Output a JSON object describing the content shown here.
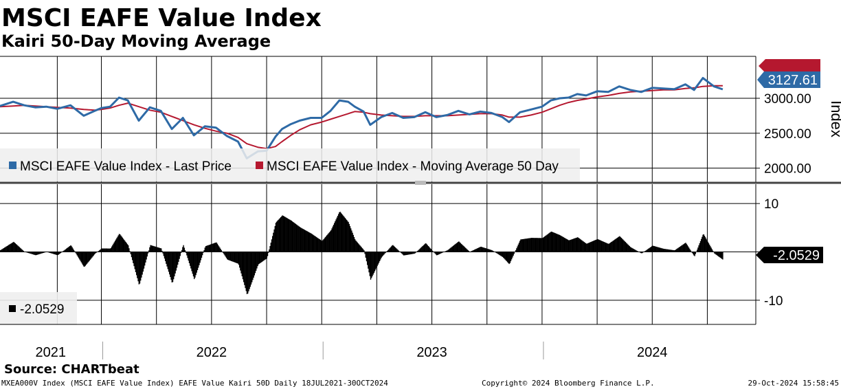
{
  "header": {
    "title": "MSCI EAFE Value Index",
    "subtitle": "Kairi 50-Day Moving Average"
  },
  "chart_data": [
    {
      "type": "line",
      "ylabel": "Index",
      "ylim": [
        1800,
        3600
      ],
      "yticks": [
        "3000.00",
        "2500.00",
        "2000.00"
      ],
      "ytick_values": [
        3000,
        2500,
        2000
      ],
      "grid": true,
      "legend_placement": "bottom-left",
      "legend": [
        {
          "label": "MSCI EAFE Value Index - Last Price",
          "color": "#2e6aa6"
        },
        {
          "label": "MSCI EAFE Value Index - Moving Average 50 Day",
          "color": "#b5182f"
        }
      ],
      "last_price_label": "3127.61",
      "last_price_value": 3127.61,
      "date_range": [
        "2021-07-18",
        "2024-10-30"
      ],
      "series": [
        {
          "name": "MSCI EAFE Value Index - Last Price",
          "color": "#2e6aa6",
          "x": [
            2021.54,
            2021.6,
            2021.65,
            2021.7,
            2021.75,
            2021.8,
            2021.86,
            2021.92,
            2021.97,
            2022.0,
            2022.04,
            2022.08,
            2022.12,
            2022.17,
            2022.22,
            2022.27,
            2022.32,
            2022.37,
            2022.42,
            2022.47,
            2022.52,
            2022.57,
            2022.62,
            2022.66,
            2022.71,
            2022.75,
            2022.79,
            2022.82,
            2022.86,
            2022.9,
            2022.95,
            2023.0,
            2023.04,
            2023.08,
            2023.12,
            2023.15,
            2023.19,
            2023.22,
            2023.27,
            2023.32,
            2023.37,
            2023.42,
            2023.47,
            2023.52,
            2023.57,
            2023.62,
            2023.67,
            2023.72,
            2023.77,
            2023.82,
            2023.85,
            2023.9,
            2023.95,
            2024.0,
            2024.04,
            2024.08,
            2024.12,
            2024.16,
            2024.2,
            2024.25,
            2024.3,
            2024.35,
            2024.4,
            2024.45,
            2024.5,
            2024.55,
            2024.6,
            2024.65,
            2024.69,
            2024.73,
            2024.78,
            2024.82
          ],
          "values": [
            2890,
            2950,
            2900,
            2870,
            2880,
            2850,
            2900,
            2750,
            2820,
            2860,
            2880,
            3010,
            2970,
            2680,
            2870,
            2820,
            2560,
            2720,
            2470,
            2600,
            2580,
            2460,
            2380,
            2140,
            2240,
            2250,
            2450,
            2560,
            2630,
            2680,
            2720,
            2720,
            2820,
            2970,
            2950,
            2880,
            2810,
            2620,
            2730,
            2790,
            2720,
            2730,
            2800,
            2730,
            2760,
            2820,
            2770,
            2810,
            2790,
            2730,
            2660,
            2800,
            2840,
            2880,
            2970,
            3000,
            3010,
            3060,
            3040,
            3100,
            3090,
            3170,
            3120,
            3090,
            3150,
            3140,
            3130,
            3200,
            3120,
            3290,
            3170,
            3127.61
          ]
        },
        {
          "name": "MSCI EAFE Value Index - Moving Average 50 Day",
          "color": "#b5182f",
          "x": [
            2021.54,
            2021.6,
            2021.65,
            2021.7,
            2021.75,
            2021.8,
            2021.86,
            2021.92,
            2021.97,
            2022.0,
            2022.04,
            2022.08,
            2022.12,
            2022.17,
            2022.22,
            2022.27,
            2022.32,
            2022.37,
            2022.42,
            2022.47,
            2022.52,
            2022.57,
            2022.62,
            2022.66,
            2022.71,
            2022.75,
            2022.79,
            2022.82,
            2022.86,
            2022.9,
            2022.95,
            2023.0,
            2023.04,
            2023.08,
            2023.12,
            2023.15,
            2023.19,
            2023.22,
            2023.27,
            2023.32,
            2023.37,
            2023.42,
            2023.47,
            2023.52,
            2023.57,
            2023.62,
            2023.67,
            2023.72,
            2023.77,
            2023.82,
            2023.85,
            2023.9,
            2023.95,
            2024.0,
            2024.04,
            2024.08,
            2024.12,
            2024.16,
            2024.2,
            2024.25,
            2024.3,
            2024.35,
            2024.4,
            2024.45,
            2024.5,
            2024.55,
            2024.6,
            2024.65,
            2024.69,
            2024.73,
            2024.78,
            2024.82
          ],
          "values": [
            2880,
            2890,
            2900,
            2890,
            2880,
            2870,
            2860,
            2840,
            2830,
            2840,
            2860,
            2900,
            2930,
            2880,
            2830,
            2800,
            2740,
            2680,
            2620,
            2570,
            2530,
            2500,
            2440,
            2350,
            2300,
            2280,
            2310,
            2380,
            2470,
            2550,
            2620,
            2660,
            2700,
            2740,
            2780,
            2810,
            2800,
            2780,
            2760,
            2750,
            2740,
            2740,
            2750,
            2750,
            2750,
            2760,
            2770,
            2780,
            2780,
            2760,
            2730,
            2730,
            2760,
            2800,
            2850,
            2900,
            2940,
            2970,
            2990,
            3020,
            3040,
            3070,
            3090,
            3100,
            3110,
            3120,
            3120,
            3140,
            3150,
            3170,
            3180,
            3180
          ]
        }
      ]
    },
    {
      "type": "bar",
      "name": "Kairi 50-Day",
      "ylim": [
        -15,
        14
      ],
      "yticks": [
        "10",
        "0",
        "-10"
      ],
      "ytick_values": [
        10,
        0,
        -10
      ],
      "legend": [
        {
          "label": "-2.0529",
          "color": "#000000"
        }
      ],
      "last_value_label": "-2.0529",
      "last_value": -2.0529,
      "x": [
        2021.54,
        2021.6,
        2021.65,
        2021.7,
        2021.75,
        2021.8,
        2021.86,
        2021.92,
        2021.97,
        2022.0,
        2022.04,
        2022.08,
        2022.12,
        2022.17,
        2022.22,
        2022.27,
        2022.32,
        2022.37,
        2022.42,
        2022.47,
        2022.52,
        2022.57,
        2022.62,
        2022.66,
        2022.71,
        2022.75,
        2022.79,
        2022.82,
        2022.86,
        2022.9,
        2022.95,
        2023.0,
        2023.04,
        2023.08,
        2023.12,
        2023.15,
        2023.19,
        2023.22,
        2023.27,
        2023.32,
        2023.37,
        2023.42,
        2023.47,
        2023.52,
        2023.57,
        2023.62,
        2023.67,
        2023.72,
        2023.77,
        2023.82,
        2023.85,
        2023.9,
        2023.95,
        2024.0,
        2024.04,
        2024.08,
        2024.12,
        2024.16,
        2024.2,
        2024.25,
        2024.3,
        2024.35,
        2024.4,
        2024.45,
        2024.5,
        2024.55,
        2024.6,
        2024.65,
        2024.69,
        2024.73,
        2024.78,
        2024.82
      ]
    }
  ],
  "x_axis": {
    "labels": [
      "2021",
      "2022",
      "2023",
      "2024"
    ],
    "label_values": [
      2021.77,
      2022.5,
      2023.5,
      2024.5
    ],
    "dividers": [
      2022.0,
      2023.0,
      2024.0
    ],
    "gridlines": [
      2021.8,
      2022.0,
      2022.25,
      2022.5,
      2022.75,
      2023.0,
      2023.25,
      2023.5,
      2023.75,
      2024.0,
      2024.25,
      2024.5,
      2024.75
    ]
  },
  "footer": {
    "source": "Source: CHARTbeat",
    "ticker_info": "MXEA000V Index (MSCI EAFE Value Index) EAFE Value Kairi 50D  Daily 18JUL2021-30OCT2024",
    "copyright": "Copyright© 2024 Bloomberg Finance L.P.",
    "timestamp": "29-Oct-2024 15:58:45"
  }
}
